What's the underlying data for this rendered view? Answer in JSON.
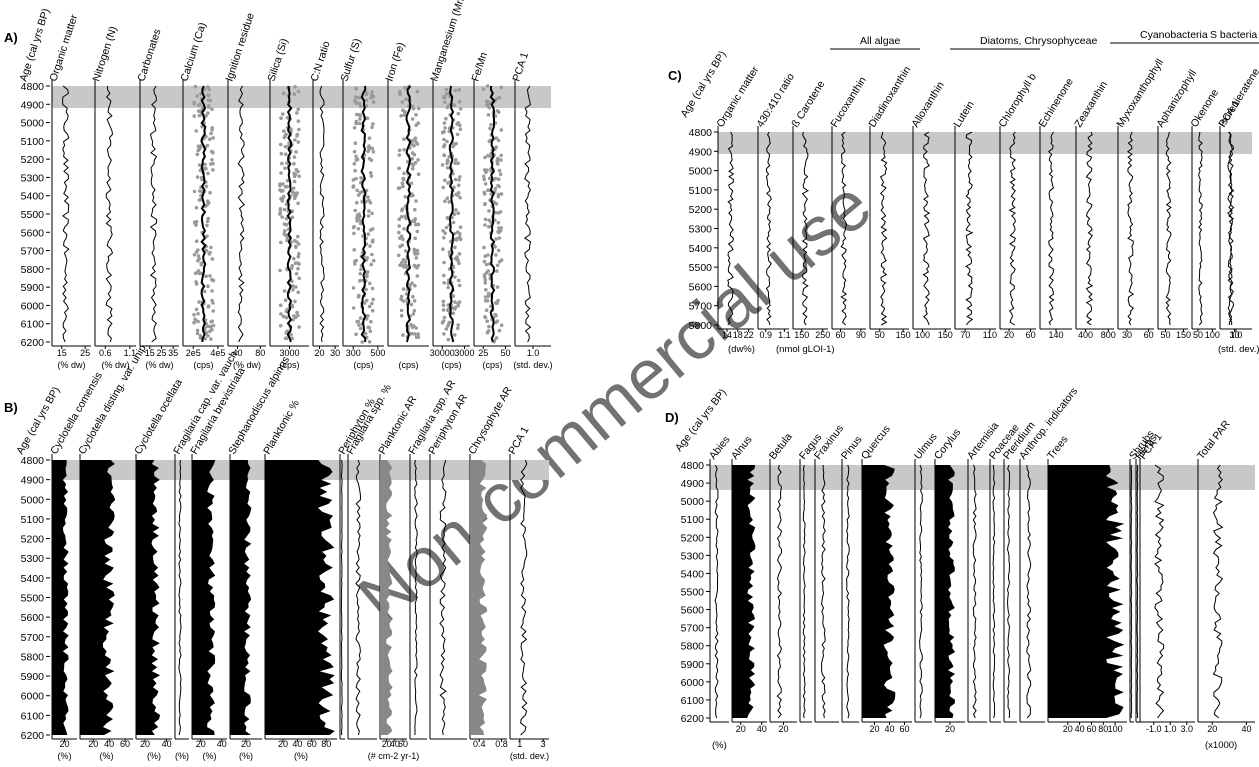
{
  "panels": {
    "A": {
      "letter": "A)",
      "age_label": "Age (cal yrs BP)",
      "yticks": [
        "4800",
        "4900",
        "5000",
        "5100",
        "5200",
        "5300",
        "5400",
        "5500",
        "5600",
        "5700",
        "5800",
        "5900",
        "6000",
        "6100",
        "6200"
      ],
      "columns": [
        {
          "title": "Organic matter",
          "ticks": [
            "15",
            "25"
          ],
          "unit": "(% dw)"
        },
        {
          "title": "Nitrogen (N)",
          "ticks": [
            "0.6",
            "1.1"
          ],
          "unit": "(% dw)"
        },
        {
          "title": "Carbonates",
          "ticks": [
            "15",
            "25",
            "35"
          ],
          "unit": "(% dw)"
        },
        {
          "title": "Calcium (Ca)",
          "ticks": [
            "2e5",
            "4e5"
          ],
          "unit": "(cps)"
        },
        {
          "title": "Ignition residue",
          "ticks": [
            "40",
            "80"
          ],
          "unit": "(% dw)"
        },
        {
          "title": "Silica (Si)",
          "ticks": [
            "3000"
          ],
          "unit": "(cps)"
        },
        {
          "title": "C:N ratio",
          "ticks": [
            "20",
            "30"
          ],
          "unit": ""
        },
        {
          "title": "Sulfur (S)",
          "ticks": [
            "300",
            "500"
          ],
          "unit": "(cps)"
        },
        {
          "title": "Iron (Fe)",
          "ticks": [],
          "unit": "(cps)"
        },
        {
          "title": "Manganesium (Mn)",
          "ticks": [
            "30000",
            "3000"
          ],
          "unit": "(cps)"
        },
        {
          "title": "Fe/Mn",
          "ticks": [
            "25",
            "50"
          ],
          "unit": "(cps)"
        },
        {
          "title": "PCA 1",
          "ticks": [
            "1.0"
          ],
          "unit": "(std. dev.)"
        }
      ]
    },
    "B": {
      "letter": "B)",
      "age_label": "Age (cal yrs BP)",
      "yticks": [
        "4800",
        "4900",
        "5000",
        "5100",
        "5200",
        "5300",
        "5400",
        "5500",
        "5600",
        "5700",
        "5800",
        "5900",
        "6000",
        "6100",
        "6200"
      ],
      "columns": [
        {
          "title": "Cyclotella comensis",
          "ticks": [
            "20"
          ],
          "unit": "(%)"
        },
        {
          "title": "Cyclotella disting. var. unip.",
          "ticks": [
            "20",
            "40",
            "60"
          ],
          "unit": "(%)"
        },
        {
          "title": "Cyclotella ocellata",
          "ticks": [
            "20",
            "40"
          ],
          "unit": "(%)"
        },
        {
          "title": "Fragilaria cap. var. vauch.",
          "ticks": [],
          "unit": "(%)"
        },
        {
          "title": "Fragilaria brevistriata",
          "ticks": [
            "20",
            "40"
          ],
          "unit": "(%)"
        },
        {
          "title": "Stephanodiscus alpinus",
          "ticks": [
            "20"
          ],
          "unit": "(%)"
        },
        {
          "title": "Planktonic %",
          "ticks": [
            "20",
            "40",
            "60",
            "80"
          ],
          "unit": "(%)"
        },
        {
          "title": "Periphyton %",
          "ticks": [],
          "unit": ""
        },
        {
          "title": "Fragilaria spp. %",
          "ticks": [],
          "unit": ""
        },
        {
          "title": "Planktonic AR",
          "ticks": [
            "20",
            "40",
            "60"
          ],
          "unit": "(# cm-2 yr-1)"
        },
        {
          "title": "Fragilaria spp. AR",
          "ticks": [],
          "unit": ""
        },
        {
          "title": "Periphyton AR",
          "ticks": [],
          "unit": ""
        },
        {
          "title": "Chrysophyte AR",
          "ticks": [
            "0.4",
            "0.8"
          ],
          "unit": ""
        },
        {
          "title": "PCA 1",
          "ticks": [
            "1",
            "3"
          ],
          "unit": "(std. dev.)"
        }
      ]
    },
    "C": {
      "letter": "C)",
      "age_label": "Age (cal yrs BP)",
      "yticks": [
        "4800",
        "4900",
        "5000",
        "5100",
        "5200",
        "5300",
        "5400",
        "5500",
        "5600",
        "5700",
        "5800"
      ],
      "groups": [
        "All algae",
        "Diatoms, Chrysophyceae",
        "Cyanobacteria",
        "S bacteria"
      ],
      "columns": [
        {
          "title": "Organic matter",
          "ticks": [
            "14",
            "18",
            "22"
          ]
        },
        {
          "title": "430:410 ratio",
          "ticks": [
            "0.9",
            "1.1"
          ]
        },
        {
          "title": "ß Carotene",
          "ticks": [
            "150",
            "250"
          ]
        },
        {
          "title": "Fucoxanthin",
          "ticks": [
            "60",
            "90"
          ]
        },
        {
          "title": "Diadinoxanthin",
          "ticks": [
            "50",
            "150"
          ]
        },
        {
          "title": "Alloxanthin",
          "ticks": [
            "100",
            "150"
          ]
        },
        {
          "title": "Lutein",
          "ticks": [
            "70",
            "110"
          ]
        },
        {
          "title": "Chlorophyll b",
          "ticks": [
            "20",
            "60"
          ]
        },
        {
          "title": "Echinenone",
          "ticks": [
            "140"
          ]
        },
        {
          "title": "Zeaxanthin",
          "ticks": [
            "400",
            "800"
          ]
        },
        {
          "title": "Myxoxanthophyll",
          "ticks": [
            "30",
            "60"
          ]
        },
        {
          "title": "Aphanizophyll",
          "ticks": [
            "50",
            "150"
          ]
        },
        {
          "title": "Okenone",
          "ticks": [
            "50",
            "100"
          ]
        },
        {
          "title": "Isorenieratene",
          "ticks": [
            "30"
          ]
        },
        {
          "title": "PCA 1",
          "ticks": [
            "1.0"
          ]
        }
      ],
      "unit1": "(dw%)",
      "unit2": "(nmol gLOI-1)",
      "unit3": "(std. dev.)"
    },
    "D": {
      "letter": "D)",
      "age_label": "Age (cal yrs BP)",
      "yticks": [
        "4800",
        "4900",
        "5000",
        "5100",
        "5200",
        "5300",
        "5400",
        "5500",
        "5600",
        "5700",
        "5800",
        "5900",
        "6000",
        "6100",
        "6200"
      ],
      "columns": [
        {
          "title": "Abies",
          "ticks": []
        },
        {
          "title": "Alnus",
          "ticks": [
            "20",
            "40"
          ]
        },
        {
          "title": "Betula",
          "ticks": [
            "20"
          ]
        },
        {
          "title": "Fagus",
          "ticks": []
        },
        {
          "title": "Fraxinus",
          "ticks": []
        },
        {
          "title": "Pinus",
          "ticks": []
        },
        {
          "title": "Quercus",
          "ticks": [
            "20",
            "40",
            "60"
          ]
        },
        {
          "title": "Ulmus",
          "ticks": []
        },
        {
          "title": "Corylus",
          "ticks": [
            "20"
          ]
        },
        {
          "title": "Artemisia",
          "ticks": []
        },
        {
          "title": "Poaceae",
          "ticks": []
        },
        {
          "title": "Pteridium",
          "ticks": []
        },
        {
          "title": "Anthrop. indicators",
          "ticks": []
        },
        {
          "title": "Trees",
          "ticks": [
            "20",
            "40",
            "60",
            "80",
            "100"
          ]
        },
        {
          "title": "Shrubs",
          "ticks": []
        },
        {
          "title": "Herbs",
          "ticks": []
        },
        {
          "title": "PCA 1",
          "ticks": [
            "-1.0",
            "1.0",
            "3.0"
          ]
        },
        {
          "title": "Total PAR",
          "ticks": [
            "20",
            "40"
          ]
        }
      ],
      "unit_left": "(%)",
      "unit_right": "(x1000)"
    }
  },
  "watermark": "Non-commercial use",
  "colors": {
    "ink": "#000000",
    "band": "#c8c8c8",
    "scatter": "#9a9a9a",
    "fill_gray": "#888888"
  }
}
